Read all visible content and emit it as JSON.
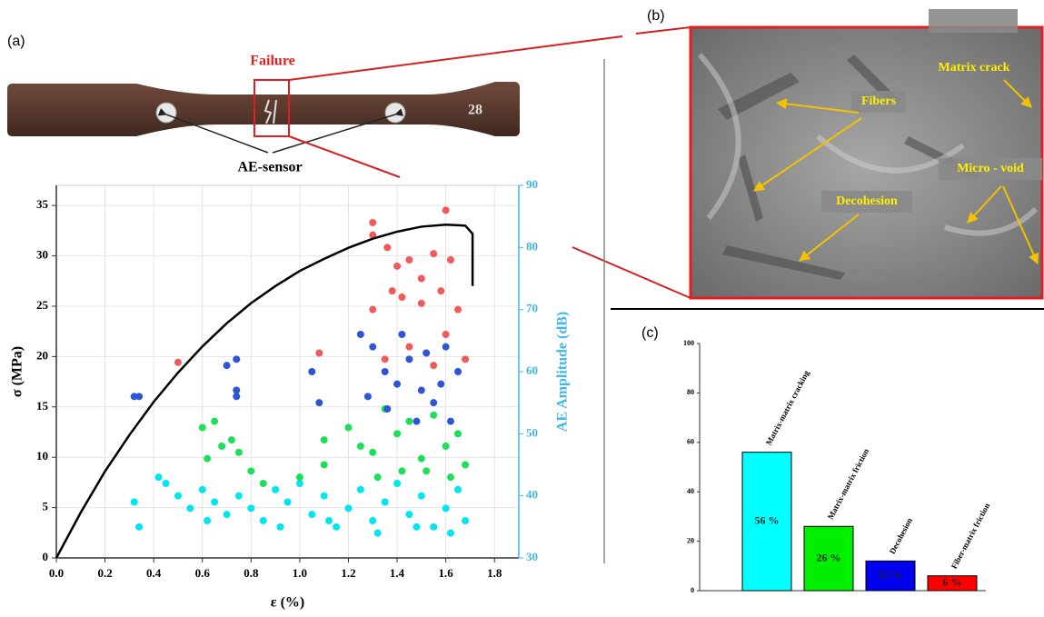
{
  "panel_labels": [
    "(a)",
    "(b)",
    "(c)"
  ],
  "specimen": {
    "failure_label": "Failure",
    "sensor_label": "AE-sensor"
  },
  "sem_labels": [
    "Matrix crack",
    "Fibers",
    "Micro - void",
    "Decohesion"
  ],
  "chart_data": [
    {
      "type": "scatter",
      "xlabel": "ε (%)",
      "ylabel": "σ (MPa)",
      "y2label": "AE Amplitude (dB)",
      "xlim": [
        0,
        1.9
      ],
      "ylim": [
        0,
        37
      ],
      "y2lim": [
        30,
        90
      ],
      "xticks": [
        {
          "value": 0,
          "label": "0.0"
        },
        0.2,
        0.4,
        0.6,
        0.8,
        {
          "value": 1,
          "label": "1.0"
        },
        1.2,
        1.4,
        1.6,
        1.8
      ],
      "yticks": [
        0,
        5,
        10,
        15,
        20,
        25,
        30,
        35
      ],
      "y2ticks": [
        30,
        40,
        50,
        60,
        70,
        80,
        90
      ],
      "grid": true,
      "y2color": "#3fb7e8",
      "series": [
        {
          "type": "line",
          "color": "#000000",
          "x": [
            0,
            0.1,
            0.2,
            0.3,
            0.4,
            0.5,
            0.6,
            0.7,
            0.8,
            0.9,
            1.0,
            1.1,
            1.2,
            1.3,
            1.4,
            1.5,
            1.6,
            1.68,
            1.71,
            1.71
          ],
          "values": [
            0,
            4.5,
            8.6,
            12.2,
            15.5,
            18.4,
            21,
            23.3,
            25.3,
            27,
            28.5,
            29.7,
            30.8,
            31.7,
            32.4,
            32.9,
            33.1,
            33.0,
            32.2,
            27
          ]
        },
        {
          "type": "scatter",
          "color": "#00e6f0",
          "axis": "y2",
          "x": [
            0.32,
            0.34,
            0.42,
            0.45,
            0.5,
            0.55,
            0.6,
            0.62,
            0.65,
            0.7,
            0.75,
            0.8,
            0.85,
            0.9,
            0.95,
            1.0,
            1.05,
            1.1,
            1.15,
            1.2,
            1.25,
            1.3,
            1.35,
            1.4,
            1.45,
            1.5,
            1.55,
            1.6,
            1.65,
            1.68,
            0.92,
            1.12,
            1.32,
            1.48,
            1.62
          ],
          "values": [
            39,
            35,
            43,
            42,
            40,
            38,
            41,
            36,
            39,
            37,
            40,
            38,
            36,
            41,
            39,
            42,
            37,
            40,
            35,
            38,
            41,
            36,
            39,
            42,
            37,
            40,
            35,
            38,
            41,
            36,
            35,
            36,
            34,
            35,
            34
          ]
        },
        {
          "type": "scatter",
          "color": "#1de05a",
          "axis": "y2",
          "x": [
            0.6,
            0.65,
            0.62,
            0.68,
            0.72,
            0.75,
            0.8,
            0.85,
            1.1,
            1.2,
            1.25,
            1.3,
            1.35,
            1.4,
            1.45,
            1.5,
            1.55,
            1.6,
            1.65,
            1.68,
            1.32,
            1.42,
            1.52,
            1.62,
            1.1,
            1.0
          ],
          "values": [
            51,
            52,
            46,
            48,
            49,
            47,
            44,
            42,
            49,
            51,
            48,
            47,
            54,
            50,
            52,
            46,
            53,
            48,
            50,
            45,
            43,
            44,
            44,
            43,
            45,
            43
          ]
        },
        {
          "type": "scatter",
          "color": "#2f55d4",
          "axis": "y2",
          "x": [
            0.32,
            0.34,
            0.7,
            0.74,
            0.74,
            0.74,
            1.05,
            1.08,
            1.25,
            1.3,
            1.35,
            1.4,
            1.45,
            1.5,
            1.55,
            1.6,
            1.65,
            1.28,
            1.42,
            1.52,
            1.36,
            1.62,
            1.48,
            1.58
          ],
          "values": [
            56,
            56,
            61,
            62,
            57,
            56,
            60,
            55,
            66,
            64,
            60,
            58,
            62,
            57,
            55,
            64,
            60,
            56,
            66,
            63,
            54,
            52,
            52,
            58
          ]
        },
        {
          "type": "scatter",
          "color": "#f05a5a",
          "axis": "y2",
          "x": [
            0.5,
            1.08,
            1.3,
            1.3,
            1.36,
            1.4,
            1.45,
            1.5,
            1.55,
            1.6,
            1.62,
            1.38,
            1.42,
            1.5,
            1.58,
            1.65,
            1.6,
            1.45,
            1.55,
            1.68,
            1.3,
            1.35
          ],
          "values": [
            61.5,
            63,
            84,
            82,
            80,
            77,
            78,
            75,
            79,
            86,
            78,
            73,
            72,
            71,
            73,
            70,
            66,
            64,
            61,
            62,
            70,
            62
          ]
        }
      ]
    },
    {
      "type": "bar",
      "categories": [
        "Matrix-matrix cracking",
        "Matrix-matrix friction",
        "Decohesion",
        "Fiber-matrix friction"
      ],
      "values": [
        56,
        26,
        12,
        6
      ],
      "value_labels": [
        "56 %",
        "26 %",
        "12 %",
        "6 %"
      ],
      "colors": [
        "#00ffff",
        "#00ee00",
        "#0000ee",
        "#ff0000"
      ],
      "ylim": [
        0,
        100
      ],
      "yticks": [
        0,
        20,
        40,
        60,
        80,
        100
      ]
    }
  ]
}
